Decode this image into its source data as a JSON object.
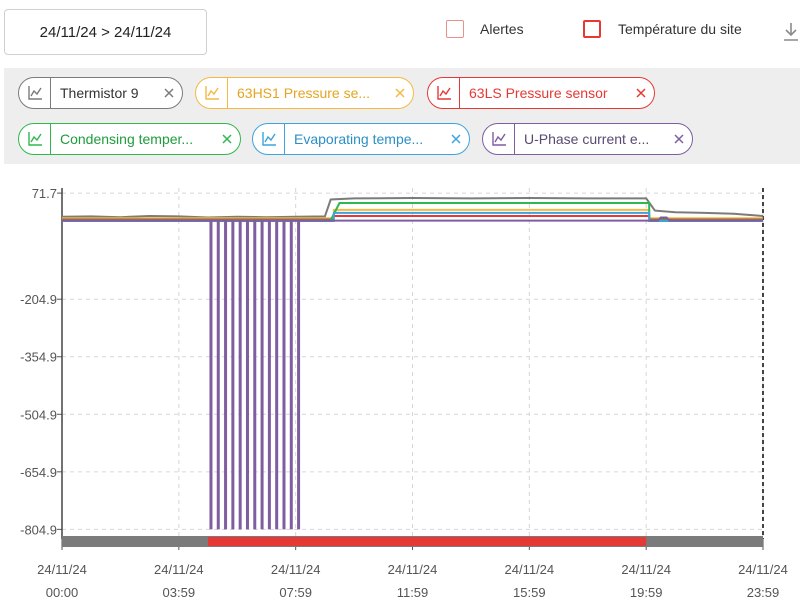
{
  "header": {
    "date_range": "24/11/24 > 24/11/24",
    "legend_toggles": [
      {
        "label": "Alertes",
        "color": "#e8908a"
      },
      {
        "label": "Température du site",
        "color": "#e53935"
      }
    ],
    "download_icon": "download-icon"
  },
  "chips": [
    {
      "label": "Thermistor 9",
      "color": "#7b7b7b",
      "text_color": "#333333"
    },
    {
      "label": "63HS1 Pressure se...",
      "color": "#f5b942",
      "text_color": "#e6a420"
    },
    {
      "label": "63LS Pressure sensor",
      "color": "#e53935",
      "text_color": "#e53935"
    },
    {
      "label": "Condensing temper...",
      "color": "#2eb84e",
      "text_color": "#1f9c3c"
    },
    {
      "label": "Evaporating tempe...",
      "color": "#3ba4dd",
      "text_color": "#2b8fc7"
    },
    {
      "label": "U-Phase current e...",
      "color": "#7e5da0",
      "text_color": "#5a4a72"
    }
  ],
  "chart_data": {
    "type": "line",
    "grid": true,
    "ylim": [
      -830,
      85
    ],
    "y_ticks": [
      "71.7",
      "-204.9",
      "-354.9",
      "-504.9",
      "-654.9",
      "-804.9"
    ],
    "x_ticks": [
      {
        "date": "24/11/24",
        "time": "00:00"
      },
      {
        "date": "24/11/24",
        "time": "03:59"
      },
      {
        "date": "24/11/24",
        "time": "07:59"
      },
      {
        "date": "24/11/24",
        "time": "11:59"
      },
      {
        "date": "24/11/24",
        "time": "15:59"
      },
      {
        "date": "24/11/24",
        "time": "19:59"
      },
      {
        "date": "24/11/24",
        "time": "23:59"
      }
    ],
    "xlim_hours": [
      0,
      24
    ],
    "series": [
      {
        "name": "Thermistor 9",
        "color": "#7b7b7b",
        "x": [
          0,
          1,
          2,
          3,
          4,
          5,
          6,
          7,
          8,
          9,
          9.2,
          10,
          12,
          14,
          16,
          18,
          20,
          20.3,
          21,
          22,
          23,
          24
        ],
        "y": [
          10,
          11,
          9,
          12,
          11,
          8,
          10,
          9,
          10,
          11,
          55,
          58,
          59,
          58,
          59,
          58,
          58,
          26,
          22,
          20,
          18,
          12
        ]
      },
      {
        "name": "63HS1 Pressure se...",
        "color": "#f5b942",
        "x": [
          0,
          9.3,
          9.31,
          20.1,
          20.11,
          24
        ],
        "y": [
          6,
          6,
          28,
          28,
          6,
          6
        ]
      },
      {
        "name": "63LS Pressure sensor",
        "color": "#e53935",
        "x": [
          0,
          9.3,
          9.31,
          20.1,
          20.11,
          24
        ],
        "y": [
          3,
          3,
          12,
          12,
          3,
          3
        ]
      },
      {
        "name": "Condensing temper...",
        "color": "#2eb84e",
        "x": [
          0,
          9.2,
          9.5,
          20.1,
          20.11,
          24
        ],
        "y": [
          1,
          1,
          46,
          46,
          1,
          1
        ]
      },
      {
        "name": "Evaporating tempe...",
        "color": "#3ba4dd",
        "x": [
          0,
          9.3,
          9.31,
          20.1,
          20.11,
          24
        ],
        "y": [
          -1,
          -1,
          20,
          20,
          -1,
          -1
        ]
      },
      {
        "name": "U-Phase current e...",
        "color": "#7e5da0",
        "x": [
          0,
          5,
          8.5,
          20.4,
          20.5,
          20.7,
          20.8,
          24
        ],
        "y": [
          0,
          0,
          0,
          0,
          8,
          8,
          0,
          0
        ],
        "spikes_from": 0,
        "spikes_to": -805,
        "spikes_x": [
          5.1,
          5.35,
          5.6,
          5.85,
          6.1,
          6.35,
          6.6,
          6.85,
          7.1,
          7.35,
          7.6,
          7.85,
          8.1
        ]
      }
    ],
    "alert_band": {
      "color": "#e53935",
      "base_color": "#7b7b7b",
      "from_hours": 5,
      "to_hours": 20
    }
  }
}
